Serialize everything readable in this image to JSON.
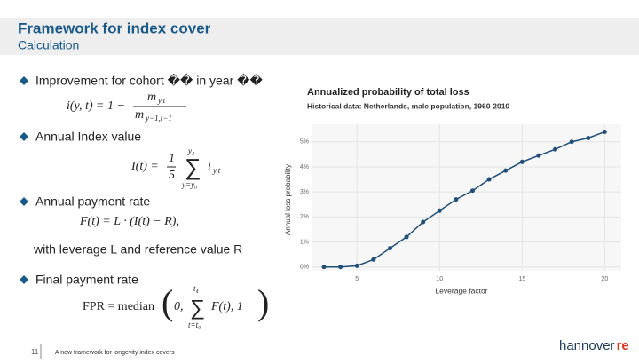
{
  "header": {
    "title": "Framework for index cover",
    "subtitle": "Calculation"
  },
  "bullets": [
    {
      "text": "Improvement for cohort �� in year ��",
      "formula": {
        "lhs": "i(y, t) = 1 −",
        "num": "m",
        "num_sub": "y,t",
        "den": "m",
        "den_sub": "y−1,t−1"
      }
    },
    {
      "text": "Annual Index value",
      "formula": {
        "lhs": "I(t) =",
        "num": "1",
        "den": "5",
        "sum": "∑",
        "upper": "y₄",
        "lower": "y=y₀",
        "term": "i",
        "term_sub": "y,t"
      }
    },
    {
      "text": "Annual payment rate",
      "formula": {
        "line": "F(t) = L · (I(t) − R),"
      },
      "note": "with leverage L and reference value R"
    },
    {
      "text": "Final payment rate",
      "formula": {
        "lhs": "FPR = median",
        "open": "(",
        "first": "0,",
        "sum": "∑",
        "upper": "t₄",
        "lower": "t=t₀",
        "term": "F(t), 1",
        "close": ")"
      }
    }
  ],
  "footer": {
    "page": "11",
    "text": "A new framework for longevity index covers",
    "logo": "hannover",
    "logo_accent": "re"
  },
  "chart_data": {
    "type": "line",
    "title": "Annualized probability of total loss",
    "subtitle": "Historical data: Netherlands, male population, 1960-2010",
    "x_label": "Leverage factor",
    "y_label": "Annual loss probability",
    "x": [
      3,
      4,
      5,
      6,
      7,
      8,
      9,
      10,
      11,
      12,
      13,
      14,
      15,
      16,
      17,
      18,
      19,
      20
    ],
    "values": [
      0.0,
      0.0,
      0.05,
      0.3,
      0.75,
      1.2,
      1.8,
      2.25,
      2.7,
      3.05,
      3.5,
      3.85,
      4.2,
      4.45,
      4.7,
      5.0,
      5.15,
      5.4
    ],
    "color": "#1f4e79",
    "xlim": [
      2.3,
      21
    ],
    "ylim": [
      -0.15,
      5.7
    ],
    "xticks": [
      5,
      10,
      15,
      20
    ],
    "yticks": [
      {
        "value": 0,
        "label": "0%"
      },
      {
        "value": 1,
        "label": "1%"
      },
      {
        "value": 2,
        "label": "2%"
      },
      {
        "value": 3,
        "label": "3%"
      },
      {
        "value": 4,
        "label": "4%"
      },
      {
        "value": 5,
        "label": "5%"
      }
    ],
    "grid": true
  }
}
